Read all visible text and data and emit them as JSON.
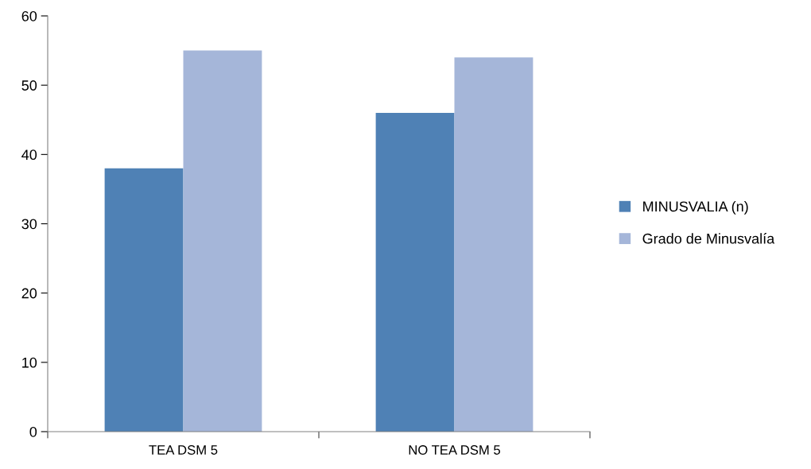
{
  "chart_data": {
    "type": "bar",
    "categories": [
      "TEA DSM 5",
      "NO TEA DSM 5"
    ],
    "series": [
      {
        "name": "MINUSVALIA (n)",
        "color": "#4f81b5",
        "values": [
          38,
          46
        ]
      },
      {
        "name": "Grado de Minusvalía",
        "color": "#a5b6d9",
        "values": [
          55,
          54
        ]
      }
    ],
    "ylim": [
      0,
      60
    ],
    "yticks": [
      0,
      10,
      20,
      30,
      40,
      50,
      60
    ],
    "grid": false,
    "legend": "right"
  }
}
